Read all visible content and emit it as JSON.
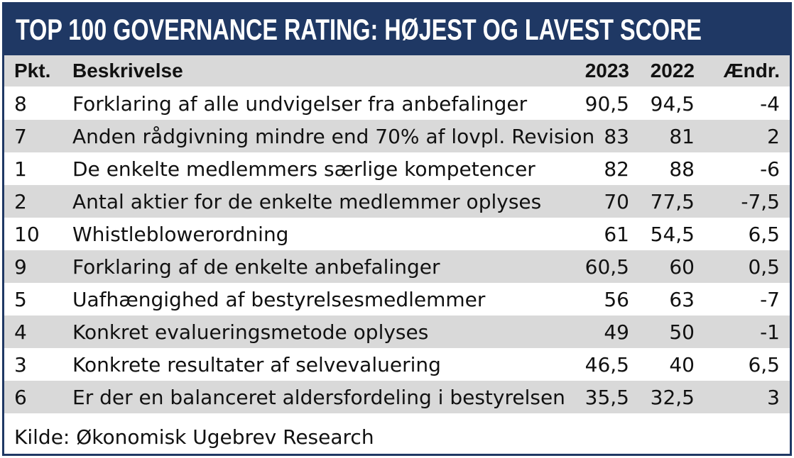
{
  "header": {
    "title": "TOP 100 GOVERNANCE RATING: HØJEST OG LAVEST SCORE"
  },
  "table": {
    "columns": [
      "Pkt.",
      "Beskrivelse",
      "2023",
      "2022",
      "Ændr."
    ],
    "rows": [
      [
        "8",
        "Forklaring af alle undvigelser fra anbefalinger",
        "90,5",
        "94,5",
        "-4"
      ],
      [
        "7",
        "Anden rådgivning mindre end 70% af lovpl. Revision",
        "83",
        "81",
        "2"
      ],
      [
        "1",
        "De enkelte medlemmers særlige kompetencer",
        "82",
        "88",
        "-6"
      ],
      [
        "2",
        "Antal aktier for de enkelte medlemmer oplyses",
        "70",
        "77,5",
        "-7,5"
      ],
      [
        "10",
        "Whistleblowerordning",
        "61",
        "54,5",
        "6,5"
      ],
      [
        "9",
        "Forklaring af de enkelte anbefalinger",
        "60,5",
        "60",
        "0,5"
      ],
      [
        "5",
        "Uafhængighed af bestyrelsesmedlemmer",
        "56",
        "63",
        "-7"
      ],
      [
        "4",
        "Konkret evalueringsmetode oplyses",
        "49",
        "50",
        "-1"
      ],
      [
        "3",
        "Konkrete resultater af selvevaluering",
        "46,5",
        "40",
        "6,5"
      ],
      [
        "6",
        "Er der en balanceret aldersfordeling i bestyrelsen",
        "35,5",
        "32,5",
        "3"
      ]
    ]
  },
  "footer": {
    "source": "Kilde: Økonomisk Ugebrev Research"
  }
}
